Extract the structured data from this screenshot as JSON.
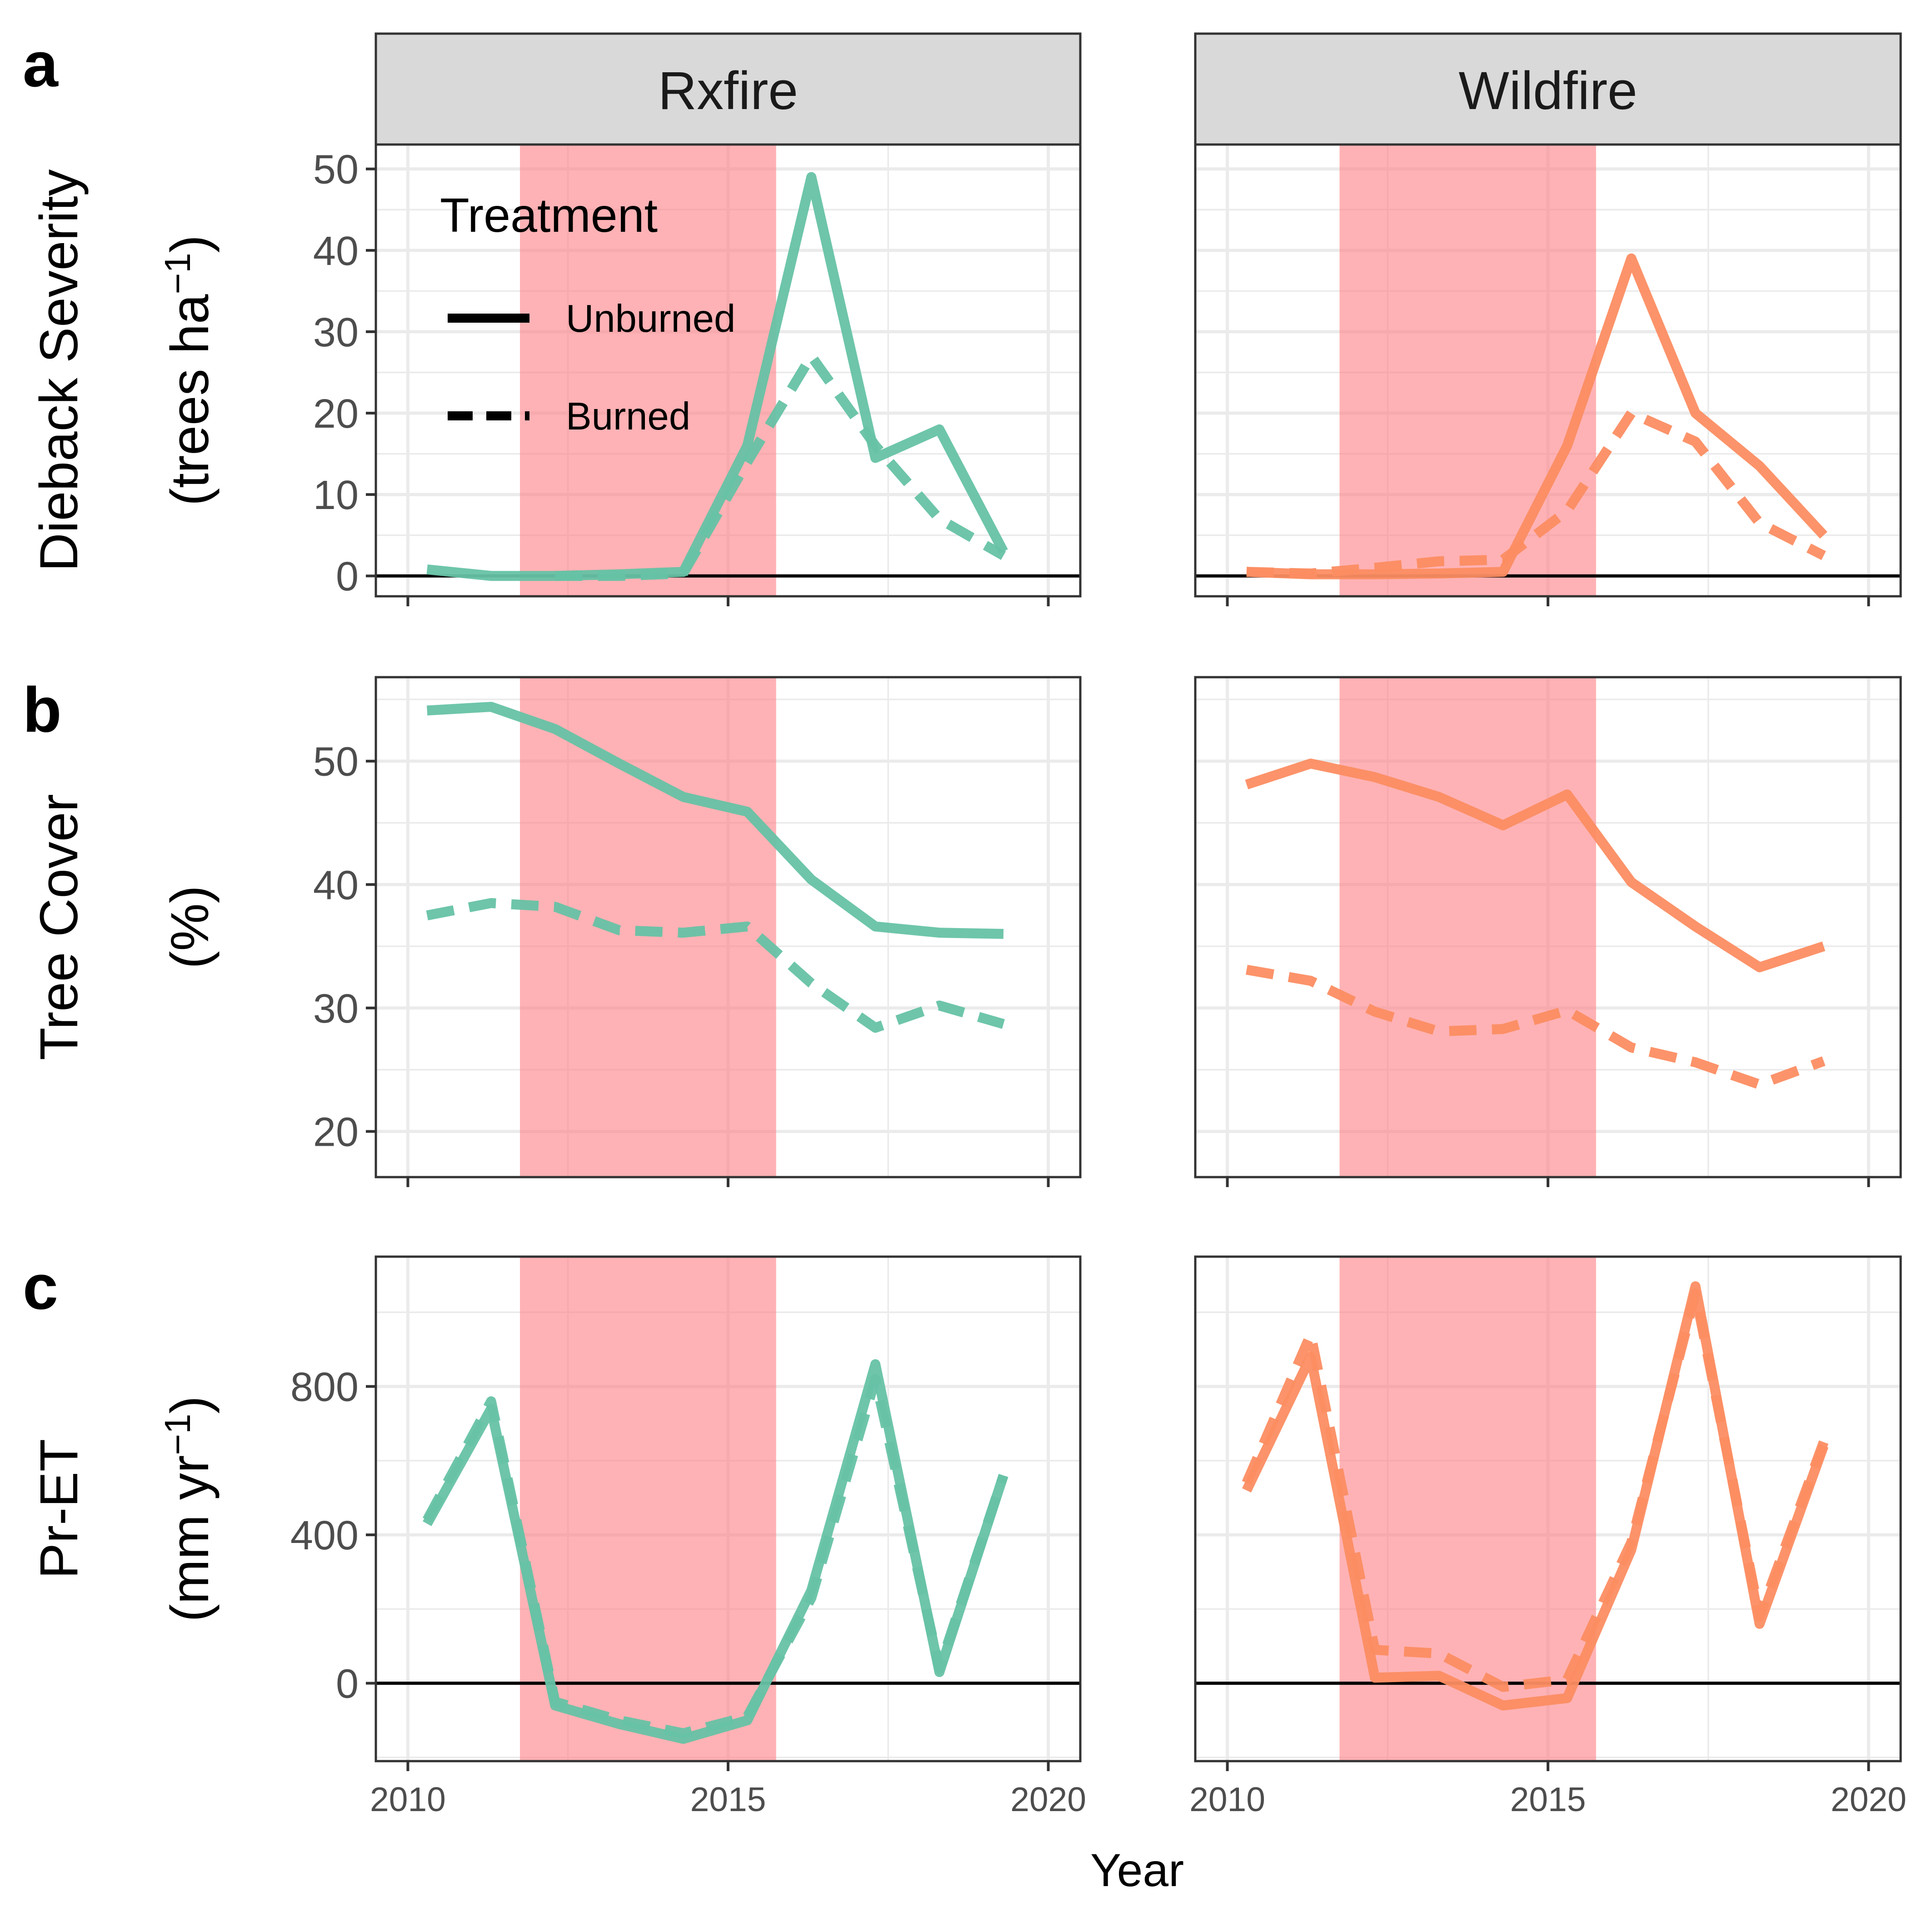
{
  "facets": [
    "Rxfire",
    "Wildfire"
  ],
  "panel_letters": [
    "a",
    "b",
    "c"
  ],
  "x_axis": {
    "label": "Year",
    "ticks": [
      2010,
      2015,
      2020
    ],
    "range": [
      2009.5,
      2020.5
    ]
  },
  "drought_period": {
    "start": 2011.75,
    "end": 2015.75,
    "color": "#ff7f84"
  },
  "legend": {
    "title": "Treatment",
    "items": [
      {
        "name": "Unburned",
        "style": "solid"
      },
      {
        "name": "Burned",
        "style": "dashed"
      }
    ]
  },
  "colors": {
    "Rxfire": "#66c2a5",
    "Wildfire": "#fc8d62"
  },
  "chart_data": [
    {
      "type": "line",
      "row": "a",
      "ylabel_line1": "Dieback Severity",
      "ylabel_line2": "(trees ha",
      "ylabel_sup": "−1",
      "ylabel_tail": ")",
      "ylim": [
        -2.5,
        53
      ],
      "yticks": [
        0,
        10,
        20,
        30,
        40,
        50
      ],
      "hline": 0,
      "grid": true,
      "x": [
        2010.3,
        2011.3,
        2012.3,
        2013.3,
        2014.3,
        2015.3,
        2016.3,
        2017.3,
        2018.3,
        2019.3
      ],
      "series": [
        {
          "facet": "Rxfire",
          "name": "Unburned",
          "values": [
            0.8,
            0.0,
            0.0,
            0.2,
            0.5,
            16,
            49,
            14.5,
            18,
            3
          ]
        },
        {
          "facet": "Rxfire",
          "name": "Burned",
          "values": [
            null,
            null,
            0.0,
            0.0,
            0.3,
            14,
            27,
            16,
            7,
            2.5
          ]
        },
        {
          "facet": "Wildfire",
          "name": "Unburned",
          "values": [
            0.5,
            0.2,
            0.2,
            0.3,
            0.5,
            16,
            39,
            20,
            13.5,
            5
          ]
        },
        {
          "facet": "Wildfire",
          "name": "Burned",
          "values": [
            0.5,
            0.3,
            1.0,
            1.8,
            2.0,
            8,
            20,
            16.5,
            6.5,
            2.5
          ]
        }
      ]
    },
    {
      "type": "line",
      "row": "b",
      "ylabel_line1": "Tree Cover",
      "ylabel_line2": "(%)",
      "ylim": [
        16.3,
        56.8
      ],
      "yticks": [
        20,
        30,
        40,
        50
      ],
      "grid": true,
      "x": [
        2010.3,
        2011.3,
        2012.3,
        2013.3,
        2014.3,
        2015.3,
        2016.3,
        2017.3,
        2018.3,
        2019.3
      ],
      "series": [
        {
          "facet": "Rxfire",
          "name": "Unburned",
          "values": [
            54.1,
            54.4,
            52.6,
            49.8,
            47.1,
            45.9,
            40.4,
            36.6,
            36.1,
            36.0
          ]
        },
        {
          "facet": "Rxfire",
          "name": "Burned",
          "values": [
            37.5,
            38.5,
            38.2,
            36.3,
            36.1,
            36.6,
            32.0,
            28.4,
            30.2,
            28.7
          ]
        },
        {
          "facet": "Wildfire",
          "name": "Unburned",
          "values": [
            48.1,
            49.8,
            48.7,
            47.1,
            44.8,
            47.3,
            40.2,
            36.6,
            33.3,
            35.0
          ]
        },
        {
          "facet": "Wildfire",
          "name": "Burned",
          "values": [
            33.1,
            32.2,
            29.7,
            28.1,
            28.3,
            29.8,
            26.8,
            25.6,
            23.8,
            25.7
          ]
        }
      ]
    },
    {
      "type": "line",
      "row": "c",
      "ylabel_line1": "Pr-ET",
      "ylabel_line2": "(mm yr",
      "ylabel_sup": "−1",
      "ylabel_tail": ")",
      "ylim": [
        -210,
        1150
      ],
      "yticks": [
        0,
        400,
        800
      ],
      "hline": 0,
      "grid": true,
      "x": [
        2010.3,
        2011.3,
        2012.3,
        2013.3,
        2014.3,
        2015.3,
        2016.3,
        2017.3,
        2018.3,
        2019.3
      ],
      "series": [
        {
          "facet": "Rxfire",
          "name": "Unburned",
          "values": [
            430,
            740,
            -60,
            -110,
            -150,
            -100,
            250,
            860,
            30,
            560
          ]
        },
        {
          "facet": "Rxfire",
          "name": "Burned",
          "values": [
            440,
            760,
            -50,
            -100,
            -135,
            -90,
            230,
            820,
            40,
            560
          ]
        },
        {
          "facet": "Wildfire",
          "name": "Unburned",
          "values": [
            520,
            880,
            15,
            20,
            -60,
            -40,
            360,
            1070,
            160,
            640
          ]
        },
        {
          "facet": "Wildfire",
          "name": "Burned",
          "values": [
            540,
            940,
            90,
            80,
            -10,
            10,
            380,
            1050,
            180,
            650
          ]
        }
      ]
    }
  ]
}
